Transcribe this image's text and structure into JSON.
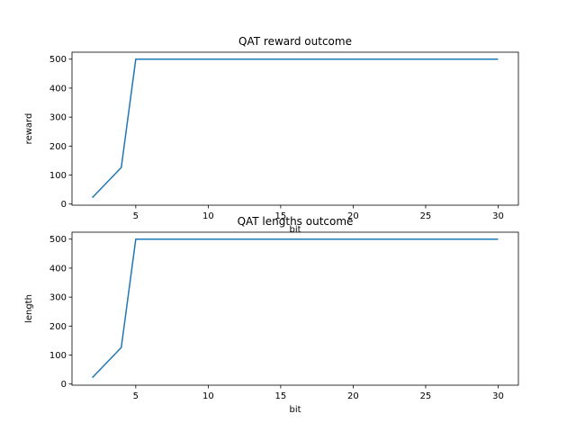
{
  "chart_data": [
    {
      "type": "line",
      "title": "QAT reward outcome",
      "xlabel": "bit",
      "ylabel": "reward",
      "xlim": [
        0.6,
        31.4
      ],
      "ylim": [
        -4,
        524
      ],
      "xticks": [
        5,
        10,
        15,
        20,
        25,
        30
      ],
      "yticks": [
        0,
        100,
        200,
        300,
        400,
        500
      ],
      "grid": false,
      "series": [
        {
          "color": "#1f77b4",
          "x": [
            2,
            3,
            4,
            5,
            6,
            7,
            8,
            10,
            12,
            14,
            16,
            18,
            20,
            22,
            24,
            26,
            28,
            30
          ],
          "y": [
            22,
            74,
            126,
            500,
            500,
            500,
            500,
            500,
            500,
            500,
            500,
            500,
            500,
            500,
            500,
            500,
            500,
            500
          ]
        }
      ]
    },
    {
      "type": "line",
      "title": "QAT lengths outcome",
      "xlabel": "bit",
      "ylabel": "length",
      "xlim": [
        0.6,
        31.4
      ],
      "ylim": [
        -4,
        524
      ],
      "xticks": [
        5,
        10,
        15,
        20,
        25,
        30
      ],
      "yticks": [
        0,
        100,
        200,
        300,
        400,
        500
      ],
      "grid": false,
      "series": [
        {
          "color": "#1f77b4",
          "x": [
            2,
            3,
            4,
            5,
            6,
            7,
            8,
            10,
            12,
            14,
            16,
            18,
            20,
            22,
            24,
            26,
            28,
            30
          ],
          "y": [
            22,
            74,
            126,
            500,
            500,
            500,
            500,
            500,
            500,
            500,
            500,
            500,
            500,
            500,
            500,
            500,
            500,
            500
          ]
        }
      ]
    }
  ]
}
